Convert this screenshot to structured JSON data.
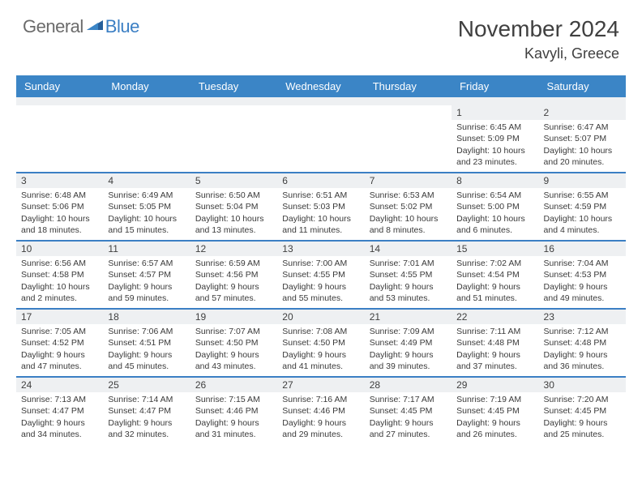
{
  "logo": {
    "general": "General",
    "blue": "Blue"
  },
  "title": {
    "month": "November 2024",
    "location": "Kavyli, Greece"
  },
  "colors": {
    "header_bg": "#3b85c6",
    "band_bg": "#eef0f2",
    "rule": "#3b7fc4",
    "text": "#3a3a3a",
    "logo_gray": "#6b6b6b",
    "logo_blue": "#3b7fc4"
  },
  "dayNames": [
    "Sunday",
    "Monday",
    "Tuesday",
    "Wednesday",
    "Thursday",
    "Friday",
    "Saturday"
  ],
  "weeks": [
    [
      {
        "n": "",
        "sr": "",
        "ss": "",
        "dl": ""
      },
      {
        "n": "",
        "sr": "",
        "ss": "",
        "dl": ""
      },
      {
        "n": "",
        "sr": "",
        "ss": "",
        "dl": ""
      },
      {
        "n": "",
        "sr": "",
        "ss": "",
        "dl": ""
      },
      {
        "n": "",
        "sr": "",
        "ss": "",
        "dl": ""
      },
      {
        "n": "1",
        "sr": "Sunrise: 6:45 AM",
        "ss": "Sunset: 5:09 PM",
        "dl": "Daylight: 10 hours and 23 minutes."
      },
      {
        "n": "2",
        "sr": "Sunrise: 6:47 AM",
        "ss": "Sunset: 5:07 PM",
        "dl": "Daylight: 10 hours and 20 minutes."
      }
    ],
    [
      {
        "n": "3",
        "sr": "Sunrise: 6:48 AM",
        "ss": "Sunset: 5:06 PM",
        "dl": "Daylight: 10 hours and 18 minutes."
      },
      {
        "n": "4",
        "sr": "Sunrise: 6:49 AM",
        "ss": "Sunset: 5:05 PM",
        "dl": "Daylight: 10 hours and 15 minutes."
      },
      {
        "n": "5",
        "sr": "Sunrise: 6:50 AM",
        "ss": "Sunset: 5:04 PM",
        "dl": "Daylight: 10 hours and 13 minutes."
      },
      {
        "n": "6",
        "sr": "Sunrise: 6:51 AM",
        "ss": "Sunset: 5:03 PM",
        "dl": "Daylight: 10 hours and 11 minutes."
      },
      {
        "n": "7",
        "sr": "Sunrise: 6:53 AM",
        "ss": "Sunset: 5:02 PM",
        "dl": "Daylight: 10 hours and 8 minutes."
      },
      {
        "n": "8",
        "sr": "Sunrise: 6:54 AM",
        "ss": "Sunset: 5:00 PM",
        "dl": "Daylight: 10 hours and 6 minutes."
      },
      {
        "n": "9",
        "sr": "Sunrise: 6:55 AM",
        "ss": "Sunset: 4:59 PM",
        "dl": "Daylight: 10 hours and 4 minutes."
      }
    ],
    [
      {
        "n": "10",
        "sr": "Sunrise: 6:56 AM",
        "ss": "Sunset: 4:58 PM",
        "dl": "Daylight: 10 hours and 2 minutes."
      },
      {
        "n": "11",
        "sr": "Sunrise: 6:57 AM",
        "ss": "Sunset: 4:57 PM",
        "dl": "Daylight: 9 hours and 59 minutes."
      },
      {
        "n": "12",
        "sr": "Sunrise: 6:59 AM",
        "ss": "Sunset: 4:56 PM",
        "dl": "Daylight: 9 hours and 57 minutes."
      },
      {
        "n": "13",
        "sr": "Sunrise: 7:00 AM",
        "ss": "Sunset: 4:55 PM",
        "dl": "Daylight: 9 hours and 55 minutes."
      },
      {
        "n": "14",
        "sr": "Sunrise: 7:01 AM",
        "ss": "Sunset: 4:55 PM",
        "dl": "Daylight: 9 hours and 53 minutes."
      },
      {
        "n": "15",
        "sr": "Sunrise: 7:02 AM",
        "ss": "Sunset: 4:54 PM",
        "dl": "Daylight: 9 hours and 51 minutes."
      },
      {
        "n": "16",
        "sr": "Sunrise: 7:04 AM",
        "ss": "Sunset: 4:53 PM",
        "dl": "Daylight: 9 hours and 49 minutes."
      }
    ],
    [
      {
        "n": "17",
        "sr": "Sunrise: 7:05 AM",
        "ss": "Sunset: 4:52 PM",
        "dl": "Daylight: 9 hours and 47 minutes."
      },
      {
        "n": "18",
        "sr": "Sunrise: 7:06 AM",
        "ss": "Sunset: 4:51 PM",
        "dl": "Daylight: 9 hours and 45 minutes."
      },
      {
        "n": "19",
        "sr": "Sunrise: 7:07 AM",
        "ss": "Sunset: 4:50 PM",
        "dl": "Daylight: 9 hours and 43 minutes."
      },
      {
        "n": "20",
        "sr": "Sunrise: 7:08 AM",
        "ss": "Sunset: 4:50 PM",
        "dl": "Daylight: 9 hours and 41 minutes."
      },
      {
        "n": "21",
        "sr": "Sunrise: 7:09 AM",
        "ss": "Sunset: 4:49 PM",
        "dl": "Daylight: 9 hours and 39 minutes."
      },
      {
        "n": "22",
        "sr": "Sunrise: 7:11 AM",
        "ss": "Sunset: 4:48 PM",
        "dl": "Daylight: 9 hours and 37 minutes."
      },
      {
        "n": "23",
        "sr": "Sunrise: 7:12 AM",
        "ss": "Sunset: 4:48 PM",
        "dl": "Daylight: 9 hours and 36 minutes."
      }
    ],
    [
      {
        "n": "24",
        "sr": "Sunrise: 7:13 AM",
        "ss": "Sunset: 4:47 PM",
        "dl": "Daylight: 9 hours and 34 minutes."
      },
      {
        "n": "25",
        "sr": "Sunrise: 7:14 AM",
        "ss": "Sunset: 4:47 PM",
        "dl": "Daylight: 9 hours and 32 minutes."
      },
      {
        "n": "26",
        "sr": "Sunrise: 7:15 AM",
        "ss": "Sunset: 4:46 PM",
        "dl": "Daylight: 9 hours and 31 minutes."
      },
      {
        "n": "27",
        "sr": "Sunrise: 7:16 AM",
        "ss": "Sunset: 4:46 PM",
        "dl": "Daylight: 9 hours and 29 minutes."
      },
      {
        "n": "28",
        "sr": "Sunrise: 7:17 AM",
        "ss": "Sunset: 4:45 PM",
        "dl": "Daylight: 9 hours and 27 minutes."
      },
      {
        "n": "29",
        "sr": "Sunrise: 7:19 AM",
        "ss": "Sunset: 4:45 PM",
        "dl": "Daylight: 9 hours and 26 minutes."
      },
      {
        "n": "30",
        "sr": "Sunrise: 7:20 AM",
        "ss": "Sunset: 4:45 PM",
        "dl": "Daylight: 9 hours and 25 minutes."
      }
    ]
  ]
}
